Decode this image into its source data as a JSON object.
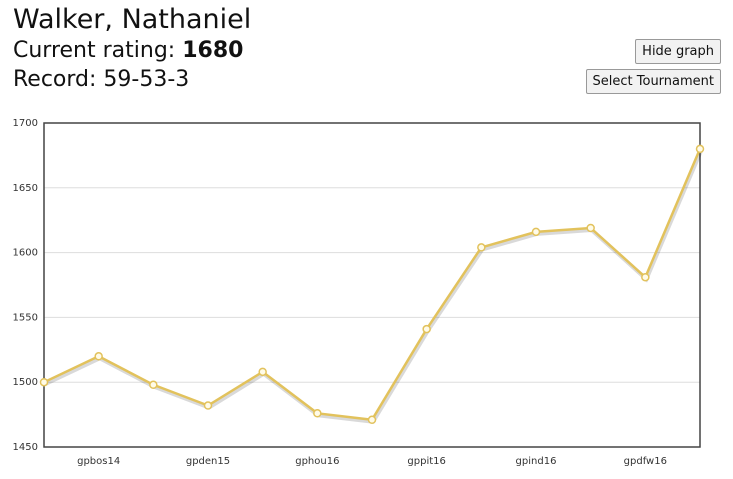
{
  "header": {
    "name": "Walker, Nathaniel",
    "rating_label": "Current rating:",
    "rating": "1680",
    "record": "Record: 59-53-3"
  },
  "buttons": [
    "Hide graph",
    "Select Tournament"
  ],
  "chart_data": {
    "type": "line",
    "categories": [
      null,
      "gpbos14",
      null,
      "gpden15",
      null,
      "gphou16",
      null,
      "gppit16",
      null,
      "gpind16",
      null,
      "gpdfw16",
      null
    ],
    "values": [
      1500,
      1520,
      1498,
      1482,
      1508,
      1476,
      1471,
      1541,
      1604,
      1616,
      1619,
      1581,
      1680
    ],
    "color": "#e2c25c",
    "ylim": [
      1450,
      1700
    ],
    "yticks": [
      1450,
      1500,
      1550,
      1600,
      1650,
      1700
    ],
    "grid": true
  }
}
